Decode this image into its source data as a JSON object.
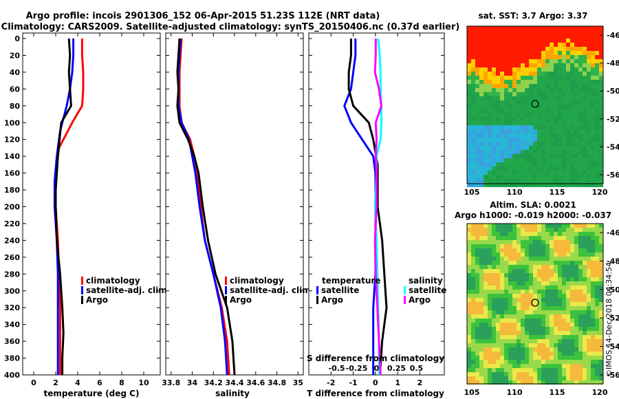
{
  "header": {
    "line1": "Argo profile: incois 2901306_152 06-Apr-2015 51.23S 112E (NRT data)",
    "line2": "Climatology: CARS2009. Satellite-adjusted climatology: synTS_20150406.nc (0.37d earlier)"
  },
  "maps": {
    "sst_title": "sat. SST: 3.7 Argo: 3.37",
    "sla_title1": "Altim. SLA: 0.0021",
    "sla_title2": "Argo h1000: -0.019 h2000: -0.037",
    "lat_ticks": [
      "-46",
      "-48",
      "-50",
      "-52",
      "-54",
      "-56"
    ],
    "lon_ticks": [
      "105",
      "110",
      "115",
      "120"
    ],
    "credit": "©IMOS 14-Dec-2018 04:34:54",
    "colors": {
      "sst_warm": "#ff1a00",
      "sst_orange": "#ffa500",
      "sst_green": "#22a64a",
      "sst_cyan": "#27b6d6",
      "sla_green": "#3cc23c",
      "sla_yellow": "#e9e94a"
    }
  },
  "chart_data": [
    {
      "type": "line",
      "depth_ticks": [
        "0",
        "20",
        "40",
        "60",
        "80",
        "100",
        "120",
        "140",
        "160",
        "180",
        "200",
        "220",
        "240",
        "260",
        "280",
        "300",
        "320",
        "340",
        "360",
        "380",
        "400"
      ],
      "xticks": [
        "0",
        "2",
        "4",
        "6",
        "8",
        "10"
      ],
      "xlim": [
        -1,
        11.5
      ],
      "ylim": [
        400,
        0
      ],
      "xlabel": "temperature (deg C)",
      "legend": {
        "placement": "bottom-right",
        "entries": [
          "climatology",
          "satellite-adj. clim.",
          "Argo"
        ]
      },
      "series": [
        {
          "name": "climatology",
          "color": "#ff0000",
          "x": [
            4.4,
            4.4,
            4.5,
            4.5,
            4.4,
            3.5,
            2.3,
            2.0,
            2.0,
            2.2,
            2.3,
            2.4,
            2.4,
            2.4
          ],
          "y": [
            0,
            20,
            40,
            60,
            80,
            100,
            130,
            160,
            200,
            240,
            280,
            320,
            360,
            400
          ]
        },
        {
          "name": "satellite-adj. clim.",
          "color": "#0000ff",
          "x": [
            3.6,
            3.6,
            3.5,
            3.3,
            3.0,
            2.4,
            2.1,
            1.9,
            1.9,
            2.1,
            2.2,
            2.2,
            2.2,
            2.2
          ],
          "y": [
            0,
            20,
            40,
            60,
            80,
            110,
            140,
            170,
            200,
            240,
            280,
            320,
            360,
            400
          ]
        },
        {
          "name": "Argo",
          "color": "#000000",
          "x": [
            3.2,
            3.3,
            3.2,
            3.3,
            3.4,
            2.5,
            2.2,
            2.0,
            2.0,
            2.1,
            2.4,
            2.6,
            2.7,
            2.6,
            2.6
          ],
          "y": [
            0,
            20,
            40,
            60,
            80,
            100,
            140,
            180,
            200,
            240,
            280,
            320,
            350,
            380,
            400
          ]
        }
      ]
    },
    {
      "type": "line",
      "depth_ticks": [
        "0",
        "20",
        "40",
        "60",
        "80",
        "100",
        "120",
        "140",
        "160",
        "180",
        "200",
        "220",
        "240",
        "260",
        "280",
        "300",
        "320",
        "340",
        "360",
        "380",
        "400"
      ],
      "xticks": [
        "33.8",
        "34",
        "34.2",
        "34.4",
        "34.6",
        "34.8",
        "35"
      ],
      "xlim": [
        33.75,
        35.05
      ],
      "ylim": [
        400,
        0
      ],
      "xlabel": "salinity",
      "legend": {
        "placement": "bottom-right",
        "entries": [
          "climatology",
          "satellite-adj. clim.",
          "Argo"
        ]
      },
      "series": [
        {
          "name": "climatology",
          "color": "#ff0000",
          "x": [
            33.9,
            33.89,
            33.88,
            33.88,
            33.88,
            33.9,
            33.98,
            34.02,
            34.05,
            34.08,
            34.12,
            34.2,
            34.28,
            34.33,
            34.35
          ],
          "y": [
            0,
            20,
            40,
            60,
            80,
            100,
            120,
            140,
            160,
            200,
            240,
            280,
            320,
            360,
            400
          ]
        },
        {
          "name": "satellite-adj. clim.",
          "color": "#0000ff",
          "x": [
            33.89,
            33.88,
            33.87,
            33.87,
            33.87,
            33.9,
            33.97,
            34.0,
            34.03,
            34.07,
            34.12,
            34.2,
            34.27,
            34.31,
            34.33
          ],
          "y": [
            0,
            20,
            40,
            60,
            80,
            100,
            120,
            140,
            160,
            200,
            240,
            280,
            320,
            360,
            400
          ]
        },
        {
          "name": "Argo",
          "color": "#000000",
          "x": [
            33.88,
            33.87,
            33.86,
            33.87,
            33.86,
            33.88,
            33.96,
            34.02,
            34.06,
            34.08,
            34.1,
            34.15,
            34.22,
            34.33,
            34.38,
            34.4
          ],
          "y": [
            0,
            20,
            40,
            60,
            80,
            100,
            120,
            140,
            160,
            180,
            200,
            240,
            280,
            320,
            360,
            400
          ]
        }
      ]
    },
    {
      "type": "line",
      "depth_ticks": [
        "0",
        "20",
        "40",
        "60",
        "80",
        "100",
        "120",
        "140",
        "160",
        "180",
        "200",
        "220",
        "240",
        "260",
        "280",
        "300",
        "320",
        "340",
        "360",
        "380",
        "400"
      ],
      "xticks": [
        "-2",
        "-1",
        "0",
        "1",
        "2"
      ],
      "top_ticks": [
        "-0.5",
        "-0.25",
        "0",
        "0.25",
        "0.5"
      ],
      "xlim": [
        -3,
        3.1
      ],
      "ylim": [
        400,
        0
      ],
      "xlabel": "T difference from climatology",
      "top_label": "S difference from climatology",
      "legend": {
        "placement": "bottom",
        "temperature_title": "temperature",
        "salinity_title": "salinity",
        "entries": [
          "satellite",
          "Argo",
          "satellite",
          "Argo"
        ]
      },
      "series": [
        {
          "name": "temperature satellite",
          "color": "#0000ff",
          "x": [
            -0.9,
            -0.9,
            -1.0,
            -1.1,
            -1.4,
            -1.1,
            -0.6,
            -0.1,
            0.0,
            0.0,
            0.0,
            0.0,
            -0.1,
            -0.1,
            -0.1
          ],
          "y": [
            0,
            20,
            40,
            60,
            80,
            100,
            120,
            140,
            160,
            200,
            240,
            280,
            320,
            360,
            400
          ]
        },
        {
          "name": "temperature Argo",
          "color": "#000000",
          "x": [
            -1.1,
            -1.1,
            -1.2,
            -1.2,
            -1.0,
            -0.3,
            -0.1,
            0.1,
            0.1,
            0.1,
            0.3,
            0.4,
            0.5,
            0.3,
            0.2
          ],
          "y": [
            0,
            20,
            40,
            60,
            80,
            100,
            120,
            150,
            180,
            200,
            240,
            280,
            320,
            360,
            400
          ]
        },
        {
          "name": "salinity satellite",
          "color": "#00ffff",
          "x": [
            0.02,
            0.04,
            0.05,
            0.05,
            0.06,
            0.06,
            0.05,
            0.0,
            0.0,
            -0.02,
            0.0,
            0.01,
            0.02,
            0.03,
            0.03
          ],
          "y": [
            0,
            20,
            40,
            60,
            80,
            100,
            120,
            140,
            160,
            200,
            240,
            280,
            320,
            360,
            400
          ]
        },
        {
          "name": "salinity Argo",
          "color": "#ff00ff",
          "x": [
            -0.01,
            -0.01,
            -0.02,
            0.03,
            0.06,
            -0.01,
            0.0,
            -0.01,
            0.0,
            0.0,
            -0.02,
            -0.01,
            0.01,
            0.03,
            0.05
          ],
          "y": [
            0,
            20,
            40,
            60,
            80,
            100,
            120,
            140,
            160,
            200,
            240,
            280,
            320,
            360,
            400
          ]
        }
      ]
    }
  ]
}
